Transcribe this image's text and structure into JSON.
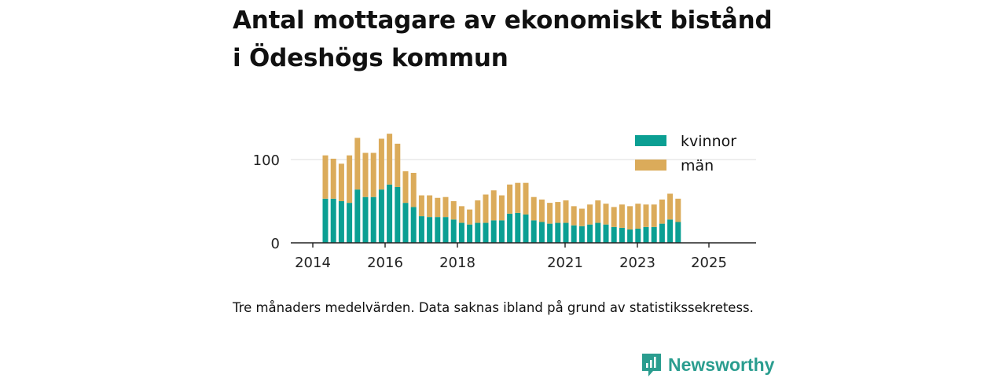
{
  "title_line1": "Antal mottagare av ekonomiskt bistånd",
  "title_line2": "i Ödeshögs kommun",
  "caption": "Tre månaders medelvärden. Data saknas ibland på grund av statistikssekretess.",
  "brand": "Newsworthy",
  "colors": {
    "kvinnor": "#0b9f93",
    "man": "#dbab5a",
    "brand": "#2a9d8f"
  },
  "chart_data": {
    "type": "bar",
    "stacked": true,
    "x_ticks": [
      "2014",
      "2016",
      "2018",
      "2021",
      "2023",
      "2025"
    ],
    "y_ticks": [
      0,
      100
    ],
    "ylim": [
      0,
      140
    ],
    "grid": true,
    "legend": "top-right",
    "series": [
      {
        "name": "kvinnor",
        "values": [
          53,
          53,
          50,
          48,
          64,
          55,
          55,
          64,
          70,
          67,
          48,
          43,
          32,
          31,
          31,
          31,
          28,
          24,
          22,
          24,
          24,
          27,
          27,
          35,
          36,
          34,
          27,
          25,
          23,
          24,
          24,
          21,
          20,
          22,
          24,
          22,
          19,
          18,
          16,
          17,
          19,
          19,
          23,
          28,
          25
        ]
      },
      {
        "name": "män",
        "values": [
          52,
          48,
          45,
          57,
          62,
          53,
          53,
          61,
          61,
          52,
          38,
          41,
          25,
          26,
          23,
          24,
          22,
          20,
          18,
          27,
          34,
          36,
          30,
          35,
          36,
          38,
          28,
          27,
          25,
          25,
          27,
          23,
          21,
          24,
          27,
          25,
          24,
          28,
          28,
          30,
          27,
          27,
          29,
          31,
          28
        ]
      }
    ]
  }
}
